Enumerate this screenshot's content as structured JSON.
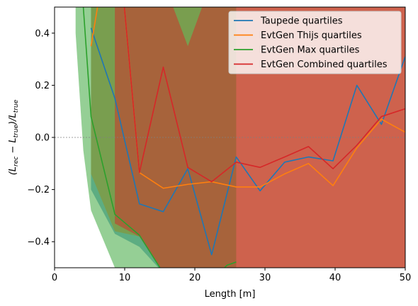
{
  "chart_data": {
    "type": "line",
    "xlabel": "Length [m]",
    "ylabel": "(L_rec − L_true)/L_true",
    "xlim": [
      0,
      50
    ],
    "ylim": [
      -0.5,
      0.5
    ],
    "xticks": [
      0,
      10,
      20,
      30,
      40,
      50
    ],
    "yticks": [
      -0.4,
      -0.2,
      0.0,
      0.2,
      0.4
    ],
    "zero_line": true,
    "legend_position": "top-right",
    "series": [
      {
        "name": "Taupede quartiles",
        "color": "#1f77b4",
        "x": [
          5.2,
          8.6,
          12.1,
          15.5,
          19.0,
          22.4,
          25.9,
          29.3,
          32.8,
          36.2,
          39.7,
          43.1,
          46.6,
          50.0
        ],
        "median": [
          0.42,
          0.15,
          -0.255,
          -0.285,
          -0.12,
          -0.45,
          -0.075,
          -0.205,
          -0.095,
          -0.075,
          -0.09,
          0.2,
          0.05,
          0.31
        ],
        "band_lower": [
          -0.2,
          -0.37,
          -0.42,
          -0.52,
          -0.52,
          -0.52,
          -0.52,
          -0.52,
          -0.52,
          -0.52,
          -0.52,
          -0.52,
          -0.52,
          -0.52
        ],
        "band_upper": [
          0.6,
          0.6,
          0.6,
          0.6,
          0.6,
          0.6,
          0.6,
          0.6,
          0.6,
          0.6,
          0.6,
          0.6,
          0.6,
          0.6
        ]
      },
      {
        "name": "EvtGen Thijs quartiles",
        "color": "#ff7f0e",
        "x": [
          5.2,
          8.6,
          12.1,
          15.5,
          19.0,
          22.4,
          25.9,
          29.3,
          32.8,
          36.2,
          39.7,
          43.1,
          46.6,
          50.0
        ],
        "median": [
          0.35,
          0.9,
          -0.135,
          -0.195,
          -0.18,
          -0.17,
          -0.19,
          -0.19,
          -0.14,
          -0.1,
          -0.185,
          -0.04,
          0.07,
          0.02
        ],
        "band_lower": [
          -0.14,
          -0.36,
          -0.38,
          -0.52,
          -0.52,
          -0.52,
          -0.52,
          -0.52,
          -0.52,
          -0.52,
          -0.52,
          -0.52,
          -0.52,
          -0.52
        ],
        "band_upper": [
          0.6,
          0.6,
          0.6,
          0.6,
          0.6,
          0.6,
          0.6,
          0.6,
          0.6,
          0.6,
          0.6,
          0.6,
          0.6,
          0.6
        ]
      },
      {
        "name": "EvtGen Max quartiles",
        "color": "#2ca02c",
        "x": [
          3.0,
          4.1,
          5.2,
          8.6,
          12.1,
          15.5,
          19.0,
          22.4,
          24.6,
          25.9
        ],
        "median": [
          0.9,
          0.5,
          0.08,
          -0.295,
          -0.375,
          -0.52,
          -0.56,
          -0.55,
          -0.49,
          -0.478
        ],
        "band_lower": [
          0.4,
          -0.05,
          -0.28,
          -0.5,
          -0.55,
          -0.55,
          -0.55,
          -0.55,
          -0.55,
          -0.55
        ],
        "band_upper": [
          0.6,
          0.6,
          0.6,
          0.6,
          0.6,
          0.6,
          0.6,
          0.6,
          0.6,
          0.6
        ]
      },
      {
        "name": "EvtGen Combined quartiles",
        "color": "#d62728",
        "x": [
          8.6,
          12.1,
          15.5,
          19.0,
          22.4,
          25.9,
          29.3,
          32.8,
          36.2,
          39.7,
          43.1,
          46.6,
          50.0
        ],
        "median": [
          0.9,
          -0.135,
          0.27,
          -0.115,
          -0.17,
          -0.095,
          -0.115,
          -0.075,
          -0.035,
          -0.12,
          -0.03,
          0.08,
          0.11
        ],
        "band_lower": [
          -0.33,
          -0.38,
          -0.52,
          -0.52,
          -0.52,
          -0.52,
          -0.52,
          -0.52,
          -0.52,
          -0.52,
          -0.52,
          -0.52,
          -0.52
        ],
        "band_upper": [
          0.6,
          0.6,
          0.6,
          0.35,
          0.6,
          0.6,
          0.6,
          0.6,
          0.6,
          0.6,
          0.6,
          0.6,
          0.6
        ]
      }
    ]
  }
}
